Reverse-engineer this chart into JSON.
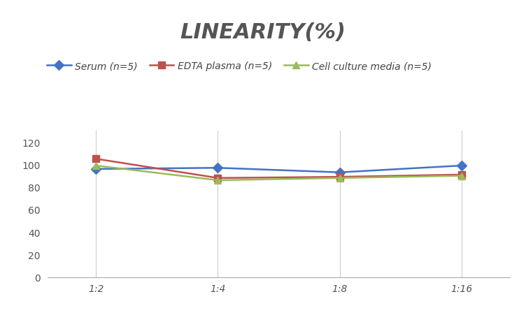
{
  "title": "LINEARITY(%)",
  "x_labels": [
    "1:2",
    "1:4",
    "1:8",
    "1:16"
  ],
  "x_positions": [
    0,
    1,
    2,
    3
  ],
  "series": [
    {
      "name": "Serum (n=5)",
      "values": [
        96,
        97,
        93,
        99
      ],
      "color": "#4472C4",
      "marker": "D",
      "marker_size": 7,
      "linewidth": 1.8
    },
    {
      "name": "EDTA plasma (n=5)",
      "values": [
        105,
        88,
        89,
        91
      ],
      "color": "#C0504D",
      "marker": "s",
      "marker_size": 7,
      "linewidth": 1.8
    },
    {
      "name": "Cell culture media (n=5)",
      "values": [
        99,
        86,
        88,
        90
      ],
      "color": "#9BBB59",
      "marker": "^",
      "marker_size": 7,
      "linewidth": 1.8
    }
  ],
  "ylim": [
    0,
    130
  ],
  "yticks": [
    0,
    20,
    40,
    60,
    80,
    100,
    120
  ],
  "title_fontsize": 22,
  "title_color": "#555555",
  "legend_fontsize": 10,
  "tick_fontsize": 10,
  "bg_color": "#FFFFFF",
  "grid_color": "#CCCCCC"
}
